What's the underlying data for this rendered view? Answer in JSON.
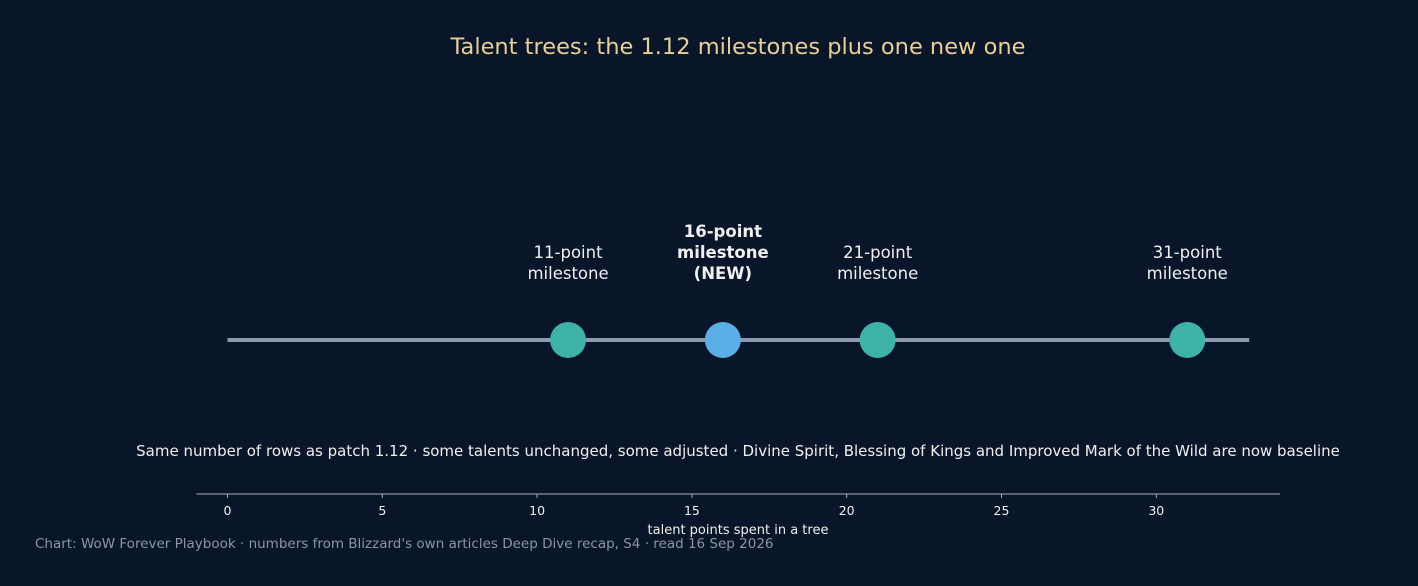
{
  "chart_data": {
    "type": "timeline",
    "title": "Talent trees: the 1.12 milestones plus one new one",
    "xlabel": "talent points spent in a tree",
    "xlim": [
      -1,
      34
    ],
    "xticks": [
      0,
      5,
      10,
      15,
      20,
      25,
      30
    ],
    "line_range": [
      0,
      33
    ],
    "points": [
      {
        "x": 11,
        "label": [
          "11-point",
          "milestone"
        ],
        "new": false
      },
      {
        "x": 16,
        "label": [
          "16-point",
          "milestone",
          "(NEW)"
        ],
        "new": true
      },
      {
        "x": 21,
        "label": [
          "21-point",
          "milestone"
        ],
        "new": false
      },
      {
        "x": 31,
        "label": [
          "31-point",
          "milestone"
        ],
        "new": false
      }
    ],
    "note": "Same number of rows as patch 1.12 · some talents unchanged, some adjusted · Divine Spirit, Blessing of Kings and Improved Mark of the Wild are now baseline",
    "source": "Chart: WoW Forever Playbook · numbers from Blizzard's own articles Deep Dive recap, S4 · read 16 Sep 2026"
  },
  "colors": {
    "background": "#091528",
    "timeline": "#8e9aae",
    "milestone": "#3db3a8",
    "new_milestone": "#5aaee6",
    "title": "#e8cf94",
    "text": "#f0f0f0",
    "source": "#8a96a8"
  }
}
